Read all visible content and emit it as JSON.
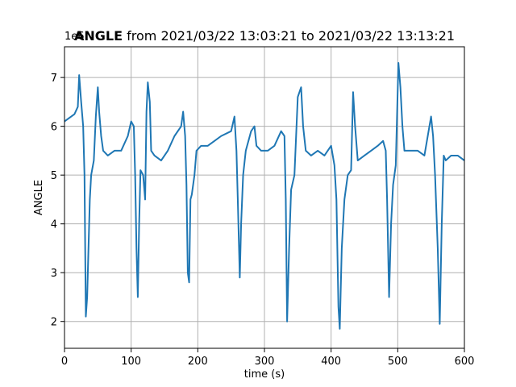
{
  "chart_data": {
    "type": "line",
    "title_bold": "ANGLE",
    "title": " from 2021/03/22 13:03:21 to 2021/03/22 13:13:21",
    "offset_label": "1e6",
    "x_label": "time (s)",
    "y_label": "ANGLE",
    "color": "#1f77b4",
    "grid": true,
    "xlim": [
      0,
      600
    ],
    "xticks": [
      0,
      100,
      200,
      300,
      400,
      500,
      600
    ],
    "ylim": [
      1.45,
      7.63
    ],
    "yticks": [
      2,
      3,
      4,
      5,
      6,
      7
    ],
    "x": [
      0,
      5,
      10,
      15,
      20,
      22,
      25,
      28,
      30,
      32,
      34,
      36,
      38,
      40,
      44,
      47,
      50,
      52,
      55,
      58,
      65,
      75,
      85,
      95,
      100,
      104,
      106,
      108,
      110,
      112,
      114,
      118,
      121,
      123,
      125,
      128,
      130,
      135,
      145,
      155,
      165,
      175,
      178,
      181,
      183,
      185,
      187,
      189,
      191,
      195,
      198,
      205,
      215,
      225,
      235,
      250,
      255,
      258,
      260,
      263,
      265,
      268,
      272,
      280,
      285,
      288,
      295,
      305,
      315,
      325,
      330,
      332,
      334,
      337,
      340,
      345,
      350,
      355,
      358,
      362,
      370,
      380,
      390,
      400,
      405,
      408,
      411,
      413,
      416,
      420,
      425,
      430,
      433,
      436,
      440,
      450,
      460,
      470,
      478,
      482,
      484,
      487,
      490,
      493,
      497,
      501,
      504,
      507,
      510,
      520,
      530,
      540,
      550,
      553,
      556,
      560,
      563,
      566,
      569,
      572,
      580,
      590,
      600
    ],
    "values": [
      6.1,
      6.15,
      6.2,
      6.25,
      6.4,
      7.05,
      6.5,
      6.0,
      5.0,
      2.1,
      2.5,
      3.5,
      4.5,
      5.0,
      5.3,
      6.2,
      6.8,
      6.3,
      5.8,
      5.5,
      5.4,
      5.5,
      5.5,
      5.8,
      6.1,
      6.0,
      5.0,
      3.5,
      2.5,
      4.0,
      5.1,
      5.0,
      4.5,
      6.3,
      6.9,
      6.5,
      5.5,
      5.4,
      5.3,
      5.5,
      5.8,
      6.0,
      6.3,
      5.8,
      4.8,
      3.0,
      2.8,
      4.5,
      4.6,
      5.0,
      5.5,
      5.6,
      5.6,
      5.7,
      5.8,
      5.9,
      6.2,
      5.5,
      4.5,
      2.9,
      4.0,
      5.0,
      5.5,
      5.9,
      6.0,
      5.6,
      5.5,
      5.5,
      5.6,
      5.9,
      5.8,
      4.5,
      2.0,
      3.5,
      4.7,
      5.0,
      6.6,
      6.8,
      6.0,
      5.5,
      5.4,
      5.5,
      5.4,
      5.6,
      5.2,
      4.5,
      2.3,
      1.85,
      3.5,
      4.5,
      5.0,
      5.1,
      6.7,
      6.0,
      5.3,
      5.4,
      5.5,
      5.6,
      5.7,
      5.5,
      4.5,
      2.5,
      4.0,
      4.8,
      5.2,
      7.3,
      6.8,
      6.0,
      5.5,
      5.5,
      5.5,
      5.4,
      6.2,
      5.8,
      5.0,
      3.5,
      1.95,
      4.0,
      5.4,
      5.3,
      5.4,
      5.4,
      5.3
    ]
  }
}
